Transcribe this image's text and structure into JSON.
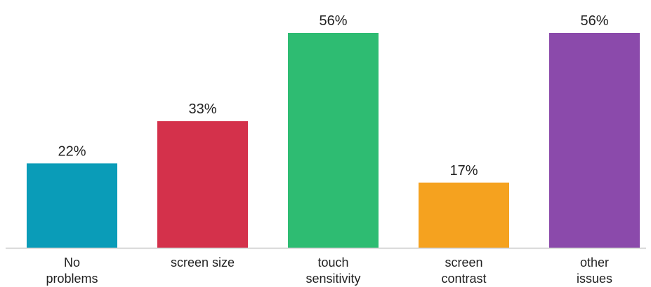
{
  "chart_data": {
    "type": "bar",
    "categories": [
      [
        "No",
        "problems"
      ],
      [
        "screen size"
      ],
      [
        "touch",
        "sensitivity"
      ],
      [
        "screen",
        "contrast"
      ],
      [
        "other",
        "issues"
      ]
    ],
    "values": [
      22,
      33,
      56,
      17,
      56
    ],
    "value_labels": [
      "22%",
      "33%",
      "56%",
      "17%",
      "56%"
    ],
    "colors": [
      "#0a9cb8",
      "#d4314b",
      "#2ebc72",
      "#f5a21f",
      "#8b4aab"
    ],
    "ylim": [
      0,
      56
    ],
    "grid": false,
    "legend": "none"
  }
}
